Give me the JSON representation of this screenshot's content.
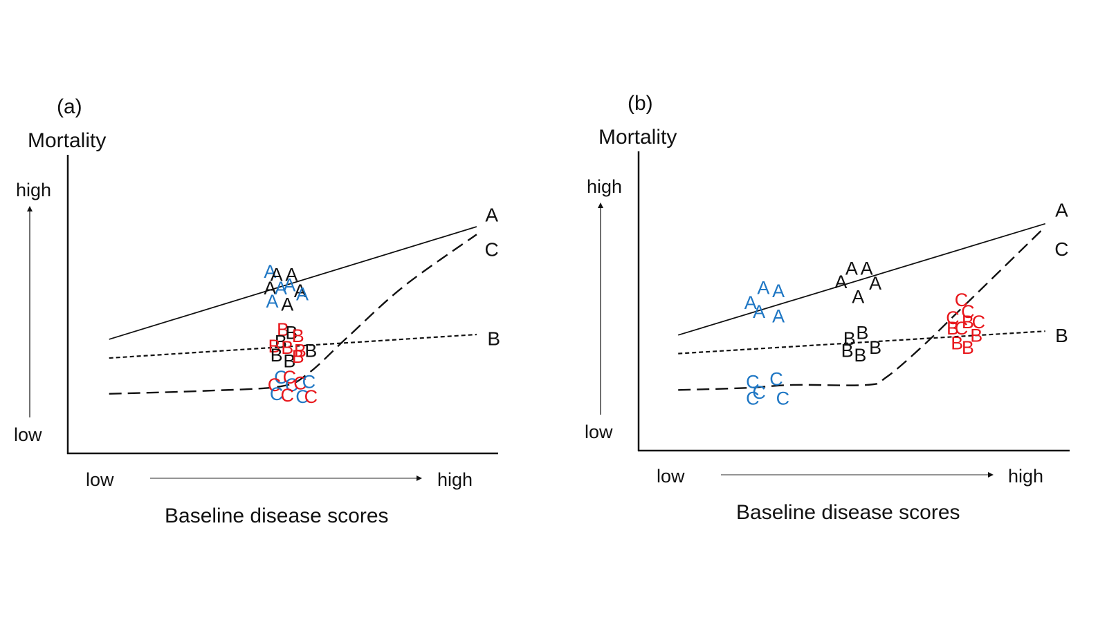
{
  "chart_data": [
    {
      "type": "line",
      "panel_label": "(a)",
      "ylabel": "Mortality",
      "xlabel": "Baseline disease scores",
      "y_ticks": {
        "low": "low",
        "high": "high"
      },
      "x_ticks": {
        "low": "low",
        "high": "high"
      },
      "xlim": [
        0,
        10
      ],
      "ylim": [
        0,
        10
      ],
      "colors": {
        "black": "#111111",
        "blue": "#1f77c4",
        "red": "#e8171c"
      },
      "series": [
        {
          "name": "A",
          "style": "solid",
          "points": [
            [
              0.96,
              3.83
            ],
            [
              9.5,
              7.61
            ]
          ]
        },
        {
          "name": "B",
          "style": "dotted",
          "points": [
            [
              0.96,
              3.2
            ],
            [
              9.5,
              3.99
            ]
          ]
        },
        {
          "name": "C",
          "style": "dashed",
          "points": [
            [
              0.96,
              2.0
            ],
            [
              3.2,
              2.1
            ],
            [
              4.95,
              2.25
            ],
            [
              5.6,
              2.7
            ],
            [
              6.5,
              3.9
            ],
            [
              7.8,
              5.6
            ],
            [
              9.5,
              7.35
            ]
          ]
        }
      ],
      "markers": [
        {
          "t": "A",
          "c": "blue",
          "x": 4.7,
          "y": 6.1
        },
        {
          "t": "A",
          "c": "black",
          "x": 4.85,
          "y": 6.0
        },
        {
          "t": "A",
          "c": "black",
          "x": 5.2,
          "y": 6.0
        },
        {
          "t": "A",
          "c": "black",
          "x": 4.7,
          "y": 5.55
        },
        {
          "t": "A",
          "c": "blue",
          "x": 4.95,
          "y": 5.55
        },
        {
          "t": "A",
          "c": "blue",
          "x": 5.15,
          "y": 5.65
        },
        {
          "t": "A",
          "c": "black",
          "x": 5.4,
          "y": 5.45
        },
        {
          "t": "A",
          "c": "blue",
          "x": 5.45,
          "y": 5.35
        },
        {
          "t": "A",
          "c": "blue",
          "x": 4.75,
          "y": 5.1
        },
        {
          "t": "A",
          "c": "black",
          "x": 5.1,
          "y": 5.0
        },
        {
          "t": "B",
          "c": "red",
          "x": 5.0,
          "y": 4.15
        },
        {
          "t": "B",
          "c": "black",
          "x": 5.2,
          "y": 4.05
        },
        {
          "t": "B",
          "c": "red",
          "x": 5.35,
          "y": 3.95
        },
        {
          "t": "B",
          "c": "black",
          "x": 4.95,
          "y": 3.75
        },
        {
          "t": "B",
          "c": "red",
          "x": 4.8,
          "y": 3.6
        },
        {
          "t": "B",
          "c": "red",
          "x": 5.1,
          "y": 3.55
        },
        {
          "t": "B",
          "c": "red",
          "x": 5.4,
          "y": 3.45
        },
        {
          "t": "B",
          "c": "black",
          "x": 5.65,
          "y": 3.45
        },
        {
          "t": "B",
          "c": "black",
          "x": 4.85,
          "y": 3.3
        },
        {
          "t": "B",
          "c": "black",
          "x": 5.15,
          "y": 3.1
        },
        {
          "t": "B",
          "c": "red",
          "x": 5.35,
          "y": 3.25
        },
        {
          "t": "C",
          "c": "blue",
          "x": 4.95,
          "y": 2.55
        },
        {
          "t": "C",
          "c": "red",
          "x": 5.15,
          "y": 2.55
        },
        {
          "t": "C",
          "c": "red",
          "x": 4.8,
          "y": 2.3
        },
        {
          "t": "C",
          "c": "blue",
          "x": 5.2,
          "y": 2.3
        },
        {
          "t": "C",
          "c": "red",
          "x": 5.4,
          "y": 2.35
        },
        {
          "t": "C",
          "c": "blue",
          "x": 5.6,
          "y": 2.4
        },
        {
          "t": "C",
          "c": "blue",
          "x": 4.85,
          "y": 2.0
        },
        {
          "t": "C",
          "c": "red",
          "x": 5.1,
          "y": 1.95
        },
        {
          "t": "C",
          "c": "blue",
          "x": 5.45,
          "y": 1.9
        },
        {
          "t": "C",
          "c": "red",
          "x": 5.65,
          "y": 1.9
        }
      ],
      "end_labels": [
        {
          "t": "A",
          "x": 9.85,
          "y": 8.0
        },
        {
          "t": "C",
          "x": 9.85,
          "y": 6.85
        },
        {
          "t": "B",
          "x": 9.9,
          "y": 3.85
        }
      ]
    },
    {
      "type": "line",
      "panel_label": "(b)",
      "ylabel": "Mortality",
      "xlabel": "Baseline disease scores",
      "y_ticks": {
        "low": "low",
        "high": "high"
      },
      "x_ticks": {
        "low": "low",
        "high": "high"
      },
      "xlim": [
        0,
        10
      ],
      "ylim": [
        0,
        10
      ],
      "colors": {
        "black": "#111111",
        "blue": "#1f77c4",
        "red": "#e8171c"
      },
      "series": [
        {
          "name": "A",
          "style": "solid",
          "points": [
            [
              0.92,
              3.87
            ],
            [
              9.45,
              7.6
            ]
          ]
        },
        {
          "name": "B",
          "style": "dotted",
          "points": [
            [
              0.92,
              3.25
            ],
            [
              9.45,
              4.0
            ]
          ]
        },
        {
          "name": "C",
          "style": "dashed",
          "points": [
            [
              0.92,
              2.03
            ],
            [
              2.5,
              2.1
            ],
            [
              3.6,
              2.2
            ],
            [
              5.3,
              2.2
            ],
            [
              5.75,
              2.45
            ],
            [
              6.6,
              3.5
            ],
            [
              7.6,
              4.9
            ],
            [
              9.45,
              7.5
            ]
          ]
        }
      ],
      "markers": [
        {
          "t": "A",
          "c": "blue",
          "x": 2.9,
          "y": 5.45
        },
        {
          "t": "A",
          "c": "blue",
          "x": 3.25,
          "y": 5.35
        },
        {
          "t": "A",
          "c": "blue",
          "x": 2.6,
          "y": 4.95
        },
        {
          "t": "A",
          "c": "blue",
          "x": 2.8,
          "y": 4.65
        },
        {
          "t": "A",
          "c": "blue",
          "x": 3.25,
          "y": 4.5
        },
        {
          "t": "A",
          "c": "black",
          "x": 4.95,
          "y": 6.1
        },
        {
          "t": "A",
          "c": "black",
          "x": 5.3,
          "y": 6.1
        },
        {
          "t": "A",
          "c": "black",
          "x": 4.7,
          "y": 5.65
        },
        {
          "t": "A",
          "c": "black",
          "x": 5.5,
          "y": 5.6
        },
        {
          "t": "A",
          "c": "black",
          "x": 5.1,
          "y": 5.15
        },
        {
          "t": "B",
          "c": "black",
          "x": 5.2,
          "y": 3.95
        },
        {
          "t": "B",
          "c": "black",
          "x": 4.9,
          "y": 3.75
        },
        {
          "t": "B",
          "c": "black",
          "x": 5.5,
          "y": 3.45
        },
        {
          "t": "B",
          "c": "black",
          "x": 4.85,
          "y": 3.35
        },
        {
          "t": "B",
          "c": "black",
          "x": 5.15,
          "y": 3.2
        },
        {
          "t": "C",
          "c": "red",
          "x": 7.5,
          "y": 5.05
        },
        {
          "t": "C",
          "c": "red",
          "x": 7.65,
          "y": 4.65
        },
        {
          "t": "C",
          "c": "red",
          "x": 7.3,
          "y": 4.45
        },
        {
          "t": "B",
          "c": "red",
          "x": 7.3,
          "y": 4.1
        },
        {
          "t": "C",
          "c": "red",
          "x": 7.5,
          "y": 4.1
        },
        {
          "t": "B",
          "c": "red",
          "x": 7.65,
          "y": 4.3
        },
        {
          "t": "C",
          "c": "red",
          "x": 7.9,
          "y": 4.3
        },
        {
          "t": "B",
          "c": "red",
          "x": 7.85,
          "y": 3.85
        },
        {
          "t": "B",
          "c": "red",
          "x": 7.4,
          "y": 3.6
        },
        {
          "t": "B",
          "c": "red",
          "x": 7.65,
          "y": 3.45
        },
        {
          "t": "C",
          "c": "blue",
          "x": 2.65,
          "y": 2.3
        },
        {
          "t": "C",
          "c": "blue",
          "x": 3.2,
          "y": 2.4
        },
        {
          "t": "C",
          "c": "blue",
          "x": 2.8,
          "y": 1.95
        },
        {
          "t": "C",
          "c": "blue",
          "x": 2.65,
          "y": 1.75
        },
        {
          "t": "C",
          "c": "blue",
          "x": 3.35,
          "y": 1.75
        }
      ],
      "end_labels": [
        {
          "t": "A",
          "x": 9.83,
          "y": 8.05
        },
        {
          "t": "C",
          "x": 9.83,
          "y": 6.75
        },
        {
          "t": "B",
          "x": 9.83,
          "y": 3.85
        }
      ]
    }
  ]
}
